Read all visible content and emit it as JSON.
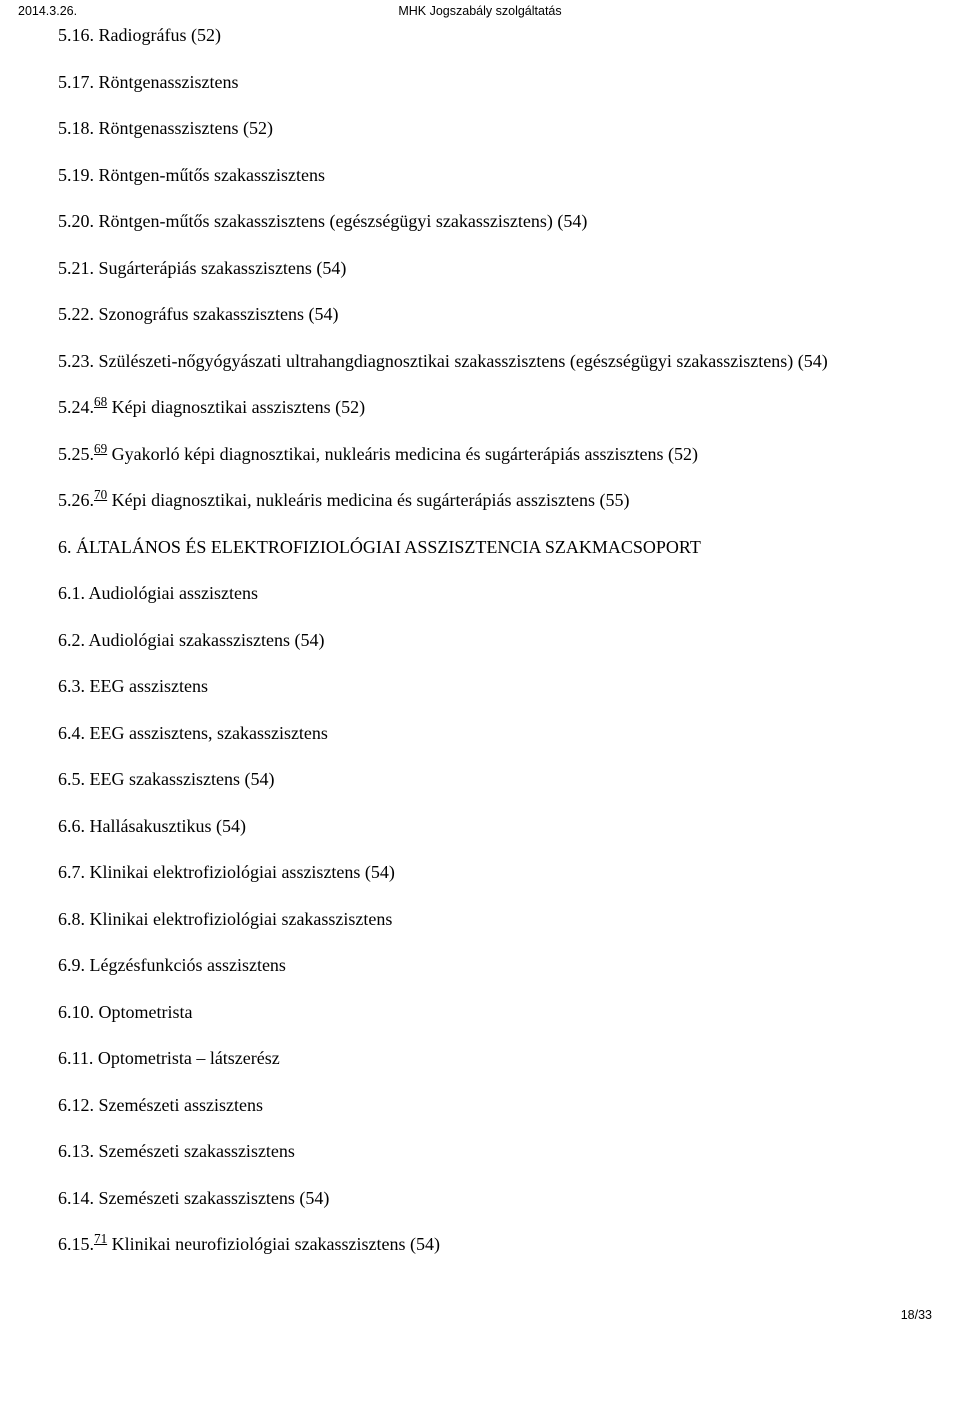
{
  "header": {
    "date": "2014.3.26.",
    "title": "MHK Jogszabály szolgáltatás"
  },
  "lines": [
    {
      "pre": "5.16. Radiográfus (52)",
      "fn": null,
      "post": ""
    },
    {
      "pre": "5.17. Röntgenasszisztens",
      "fn": null,
      "post": ""
    },
    {
      "pre": "5.18. Röntgenasszisztens (52)",
      "fn": null,
      "post": ""
    },
    {
      "pre": "5.19. Röntgen-műtős szakasszisztens",
      "fn": null,
      "post": ""
    },
    {
      "pre": "5.20. Röntgen-műtős szakasszisztens (egészségügyi szakasszisztens) (54)",
      "fn": null,
      "post": ""
    },
    {
      "pre": "5.21. Sugárterápiás szakasszisztens (54)",
      "fn": null,
      "post": ""
    },
    {
      "pre": "5.22. Szonográfus szakasszisztens (54)",
      "fn": null,
      "post": ""
    },
    {
      "pre": "5.23. Szülészeti-nőgyógyászati ultrahangdiagnosztikai szakasszisztens (egészségügyi szakasszisztens) (54)",
      "fn": null,
      "post": ""
    },
    {
      "pre": "5.24.",
      "fn": "68",
      "post": " Képi diagnosztikai asszisztens (52)"
    },
    {
      "pre": "5.25.",
      "fn": "69",
      "post": " Gyakorló képi diagnosztikai, nukleáris medicina és sugárterápiás asszisztens (52)"
    },
    {
      "pre": "5.26.",
      "fn": "70",
      "post": " Képi diagnosztikai, nukleáris medicina és sugárterápiás asszisztens (55)"
    },
    {
      "pre": "6. ÁLTALÁNOS ÉS ELEKTROFIZIOLÓGIAI ASSZISZTENCIA SZAKMACSOPORT",
      "fn": null,
      "post": ""
    },
    {
      "pre": "6.1. Audiológiai asszisztens",
      "fn": null,
      "post": ""
    },
    {
      "pre": "6.2. Audiológiai szakasszisztens (54)",
      "fn": null,
      "post": ""
    },
    {
      "pre": "6.3. EEG asszisztens",
      "fn": null,
      "post": ""
    },
    {
      "pre": "6.4. EEG asszisztens, szakasszisztens",
      "fn": null,
      "post": ""
    },
    {
      "pre": "6.5. EEG szakasszisztens (54)",
      "fn": null,
      "post": ""
    },
    {
      "pre": "6.6. Hallásakusztikus (54)",
      "fn": null,
      "post": ""
    },
    {
      "pre": "6.7. Klinikai elektrofiziológiai asszisztens (54)",
      "fn": null,
      "post": ""
    },
    {
      "pre": "6.8. Klinikai elektrofiziológiai szakasszisztens",
      "fn": null,
      "post": ""
    },
    {
      "pre": "6.9. Légzésfunkciós asszisztens",
      "fn": null,
      "post": ""
    },
    {
      "pre": "6.10. Optometrista",
      "fn": null,
      "post": ""
    },
    {
      "pre": "6.11. Optometrista – látszerész",
      "fn": null,
      "post": ""
    },
    {
      "pre": "6.12. Szemészeti asszisztens",
      "fn": null,
      "post": ""
    },
    {
      "pre": "6.13. Szemészeti szakasszisztens",
      "fn": null,
      "post": ""
    },
    {
      "pre": "6.14. Szemészeti szakasszisztens (54)",
      "fn": null,
      "post": ""
    },
    {
      "pre": "6.15.",
      "fn": "71",
      "post": " Klinikai neurofiziológiai szakasszisztens (54)"
    }
  ],
  "footer": {
    "page": "18/33"
  }
}
